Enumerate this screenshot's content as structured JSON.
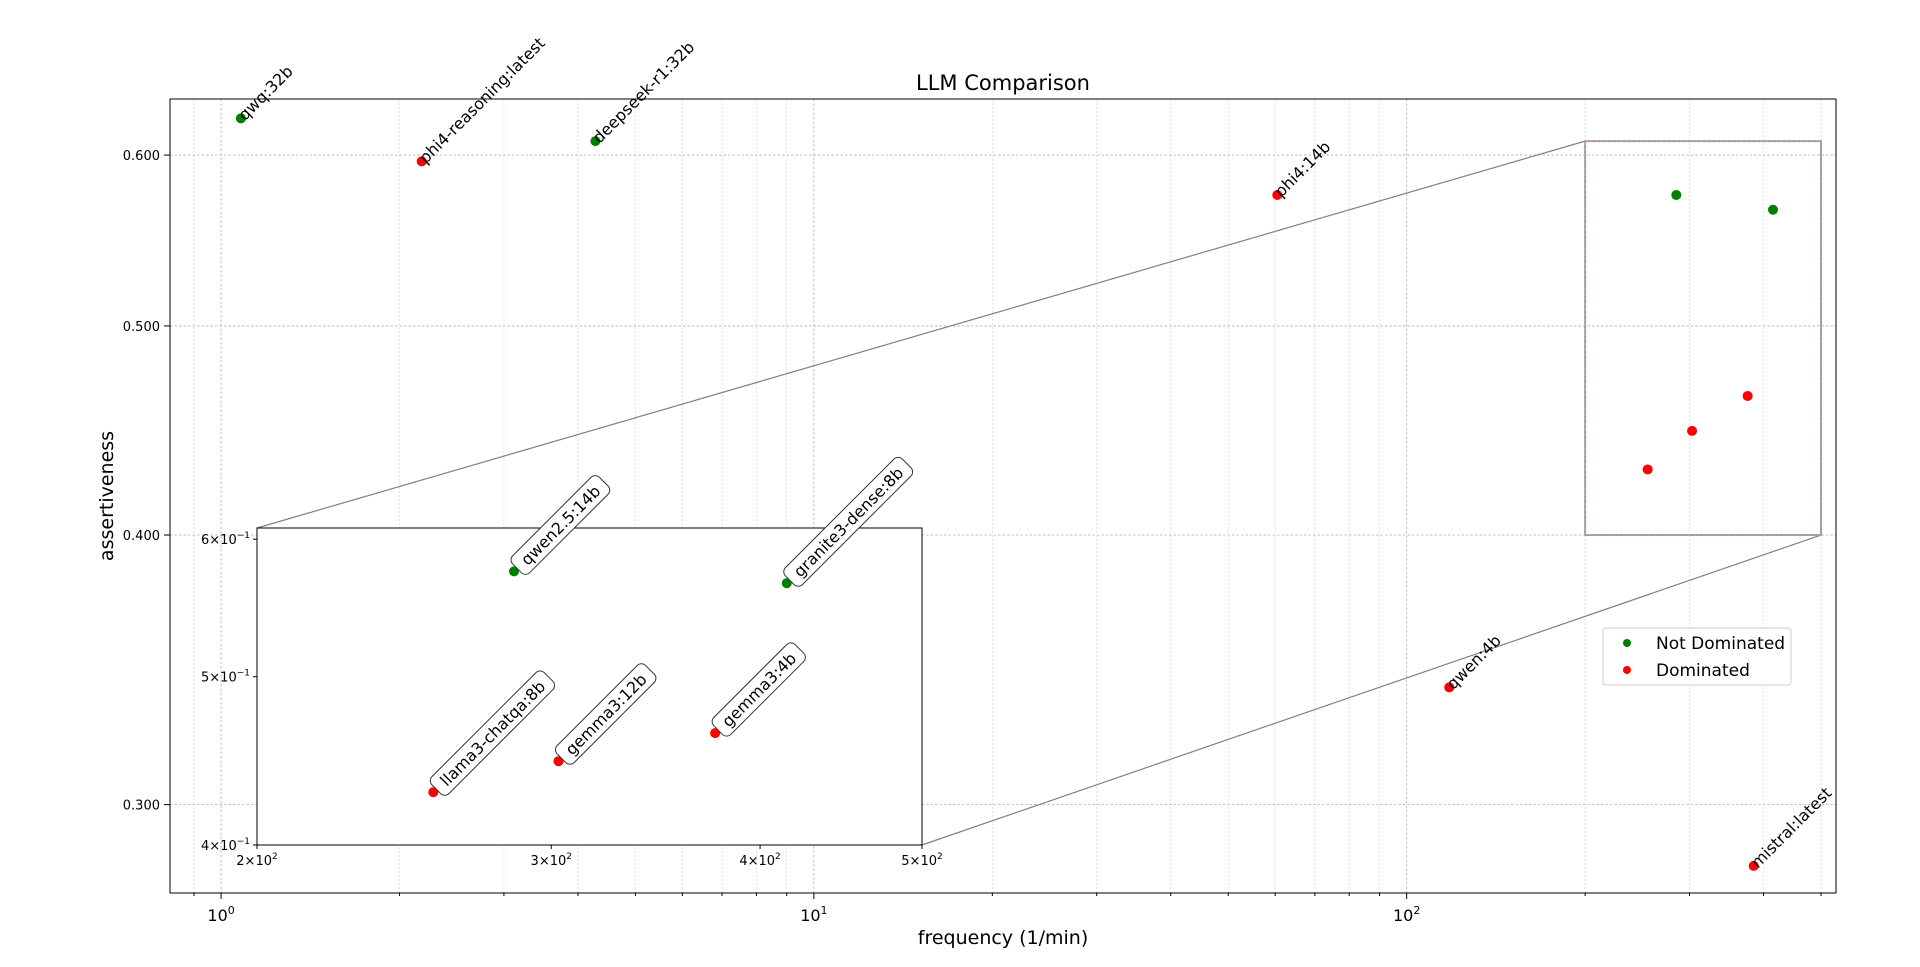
{
  "chart_data": {
    "type": "scatter",
    "title": "LLM Comparison",
    "xlabel": "frequency (1/min)",
    "ylabel": "assertiveness",
    "xscale": "log",
    "yscale": "log",
    "xlim": [
      0.82,
      530
    ],
    "ylim": [
      0.273,
      0.637
    ],
    "grid": true,
    "legend_position": "right",
    "colors": {
      "not_dominated": "#008000",
      "dominated": "#ff0000"
    },
    "x_tick_labels": [
      {
        "value": 1,
        "base": "10",
        "exp": "0"
      },
      {
        "value": 10,
        "base": "10",
        "exp": "1"
      },
      {
        "value": 100,
        "base": "10",
        "exp": "2"
      }
    ],
    "y_tick_labels": [
      {
        "value": 0.3,
        "label": "0.300"
      },
      {
        "value": 0.4,
        "label": "0.400"
      },
      {
        "value": 0.5,
        "label": "0.500"
      },
      {
        "value": 0.6,
        "label": "0.600"
      }
    ],
    "series": [
      {
        "name": "Not Dominated",
        "color": "#008000"
      },
      {
        "name": "Dominated",
        "color": "#ff0000"
      }
    ],
    "points": [
      {
        "label": "qwq:32b",
        "x": 1.08,
        "y": 0.624,
        "series": "Not Dominated"
      },
      {
        "label": "phi4-reasoning:latest",
        "x": 2.18,
        "y": 0.596,
        "series": "Dominated"
      },
      {
        "label": "deepseek-r1:32b",
        "x": 4.28,
        "y": 0.609,
        "series": "Not Dominated"
      },
      {
        "label": "phi4:14b",
        "x": 60.5,
        "y": 0.575,
        "series": "Dominated"
      },
      {
        "label": "qwen:4b",
        "x": 118,
        "y": 0.34,
        "series": "Dominated"
      },
      {
        "label": "mistral:latest",
        "x": 385,
        "y": 0.281,
        "series": "Dominated"
      }
    ],
    "zoom_region": {
      "xlim": [
        200,
        500
      ],
      "ylim": [
        0.4,
        0.609
      ]
    },
    "inset": {
      "xlim": [
        200,
        500
      ],
      "ylim": [
        0.4,
        0.609
      ],
      "x_tick_labels": [
        {
          "value": 200,
          "mant": "2",
          "base": "10",
          "exp": "2"
        },
        {
          "value": 300,
          "mant": "3",
          "base": "10",
          "exp": "2"
        },
        {
          "value": 400,
          "mant": "4",
          "base": "10",
          "exp": "2"
        },
        {
          "value": 500,
          "mant": "5",
          "base": "10",
          "exp": "2"
        }
      ],
      "y_tick_labels": [
        {
          "value": 0.4,
          "mant": "4",
          "base": "10",
          "exp": "−1"
        },
        {
          "value": 0.5,
          "mant": "5",
          "base": "10",
          "exp": "−1"
        },
        {
          "value": 0.6,
          "mant": "6",
          "base": "10",
          "exp": "−1"
        }
      ],
      "points": [
        {
          "label": "qwen2.5:14b",
          "x": 285,
          "y": 0.575,
          "series": "Not Dominated"
        },
        {
          "label": "granite3-dense:8b",
          "x": 415,
          "y": 0.566,
          "series": "Not Dominated"
        },
        {
          "label": "llama3-chatqa:8b",
          "x": 255,
          "y": 0.429,
          "series": "Dominated"
        },
        {
          "label": "gemma3:12b",
          "x": 303,
          "y": 0.447,
          "series": "Dominated"
        },
        {
          "label": "gemma3:4b",
          "x": 376,
          "y": 0.464,
          "series": "Dominated"
        }
      ]
    }
  }
}
